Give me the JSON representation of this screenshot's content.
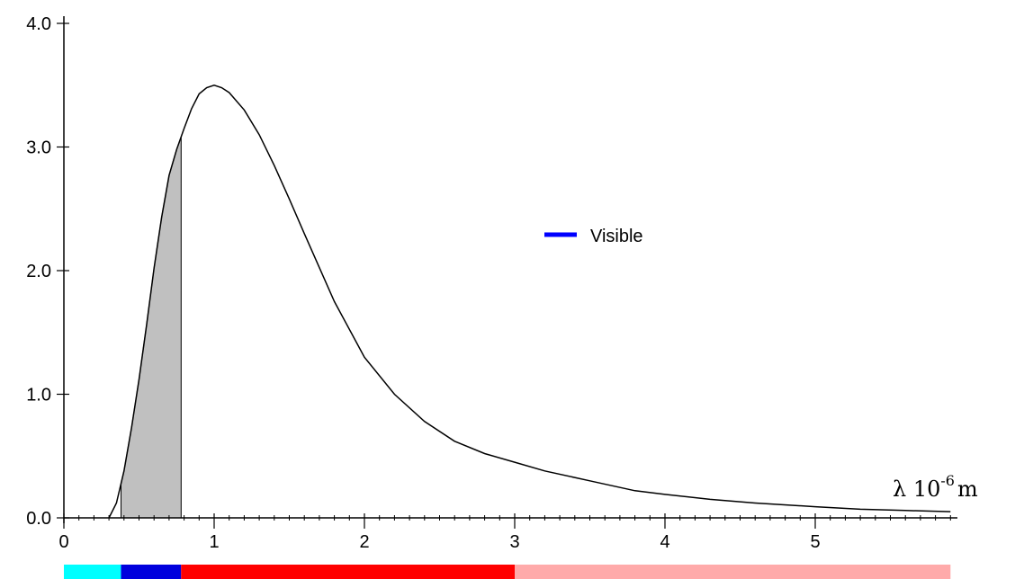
{
  "chart_data": {
    "type": "line",
    "title": "",
    "xlabel": {
      "main": "λ 10",
      "exponent": "-6",
      "unit": "m"
    },
    "ylabel": "",
    "xlim": [
      0,
      5.9
    ],
    "ylim": [
      0,
      4.0
    ],
    "x_ticks": [
      0,
      1,
      2,
      3,
      4,
      5
    ],
    "x_tick_labels": [
      "0",
      "1",
      "2",
      "3",
      "4",
      "5"
    ],
    "y_ticks": [
      0.0,
      1.0,
      2.0,
      3.0,
      4.0
    ],
    "y_tick_labels": [
      "0.0",
      "1.0",
      "2.0",
      "3.0",
      "4.0"
    ],
    "grid": false,
    "legend_position": "center-right",
    "legend": [
      {
        "name": "Visible",
        "color": "#0000ff"
      }
    ],
    "series": [
      {
        "name": "",
        "color": "#000000",
        "x": [
          0.3,
          0.35,
          0.4,
          0.45,
          0.5,
          0.55,
          0.6,
          0.65,
          0.7,
          0.75,
          0.8,
          0.85,
          0.9,
          0.95,
          1.0,
          1.05,
          1.1,
          1.2,
          1.3,
          1.4,
          1.5,
          1.6,
          1.8,
          2.0,
          2.2,
          2.4,
          2.6,
          2.8,
          3.0,
          3.2,
          3.5,
          3.8,
          4.0,
          4.3,
          4.6,
          5.0,
          5.3,
          5.6,
          5.9
        ],
        "values": [
          0.0,
          0.12,
          0.38,
          0.73,
          1.12,
          1.56,
          2.02,
          2.43,
          2.77,
          2.98,
          3.15,
          3.31,
          3.43,
          3.48,
          3.5,
          3.48,
          3.44,
          3.3,
          3.1,
          2.85,
          2.58,
          2.3,
          1.75,
          1.3,
          1.0,
          0.78,
          0.62,
          0.52,
          0.45,
          0.38,
          0.3,
          0.22,
          0.19,
          0.15,
          0.12,
          0.09,
          0.07,
          0.06,
          0.05
        ]
      }
    ],
    "shaded_region": {
      "name": "Visible",
      "x_start": 0.38,
      "x_end": 0.78,
      "fill": "#c0c0c0"
    },
    "spectrum_bar": [
      {
        "x_start": 0.0,
        "x_end": 0.38,
        "color": "#00ffff"
      },
      {
        "x_start": 0.38,
        "x_end": 0.78,
        "color": "#0000dd"
      },
      {
        "x_start": 0.78,
        "x_end": 3.0,
        "color": "#ff0000"
      },
      {
        "x_start": 3.0,
        "x_end": 5.9,
        "color": "#ffaaaa"
      }
    ]
  }
}
